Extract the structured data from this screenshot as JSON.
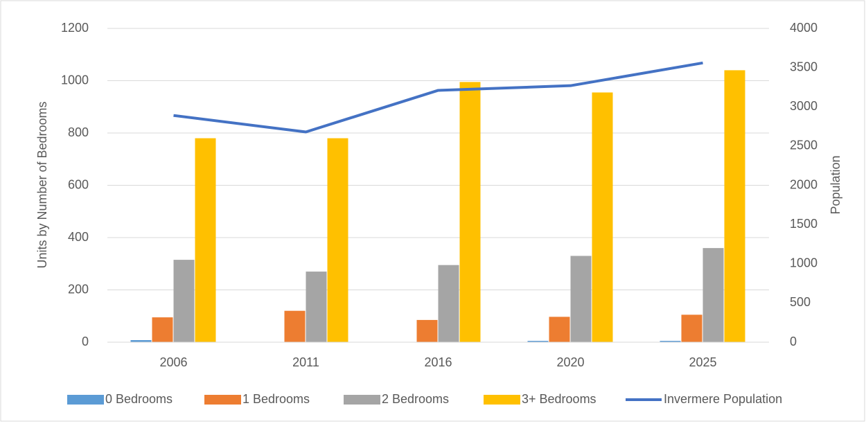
{
  "chart_data": {
    "type": "bar",
    "categories": [
      "2006",
      "2011",
      "2016",
      "2020",
      "2025"
    ],
    "y_label": "Units by Number of Bedrooms",
    "y2_label": "Population",
    "ylim": [
      0,
      1200
    ],
    "yticks": [
      0,
      200,
      400,
      600,
      800,
      1000,
      1200
    ],
    "y2lim": [
      0,
      4000
    ],
    "y2ticks": [
      0,
      500,
      1000,
      1500,
      2000,
      2500,
      3000,
      3500,
      4000
    ],
    "grid": true,
    "legend": "bottom",
    "series": [
      {
        "name": "0 Bedrooms",
        "color": "#5b9bd5",
        "values": [
          8,
          0,
          0,
          5,
          5
        ]
      },
      {
        "name": "1 Bedrooms",
        "color": "#ed7d31",
        "values": [
          95,
          120,
          85,
          97,
          105
        ]
      },
      {
        "name": "2 Bedrooms",
        "color": "#a5a5a5",
        "values": [
          315,
          270,
          295,
          330,
          360
        ]
      },
      {
        "name": "3+ Bedrooms",
        "color": "#ffc000",
        "values": [
          780,
          780,
          995,
          955,
          1040
        ]
      },
      {
        "name": "Invermere Population",
        "color": "#4472c4",
        "type": "line",
        "axis": "y2",
        "values": [
          2890,
          2680,
          3210,
          3270,
          3560
        ]
      }
    ]
  }
}
